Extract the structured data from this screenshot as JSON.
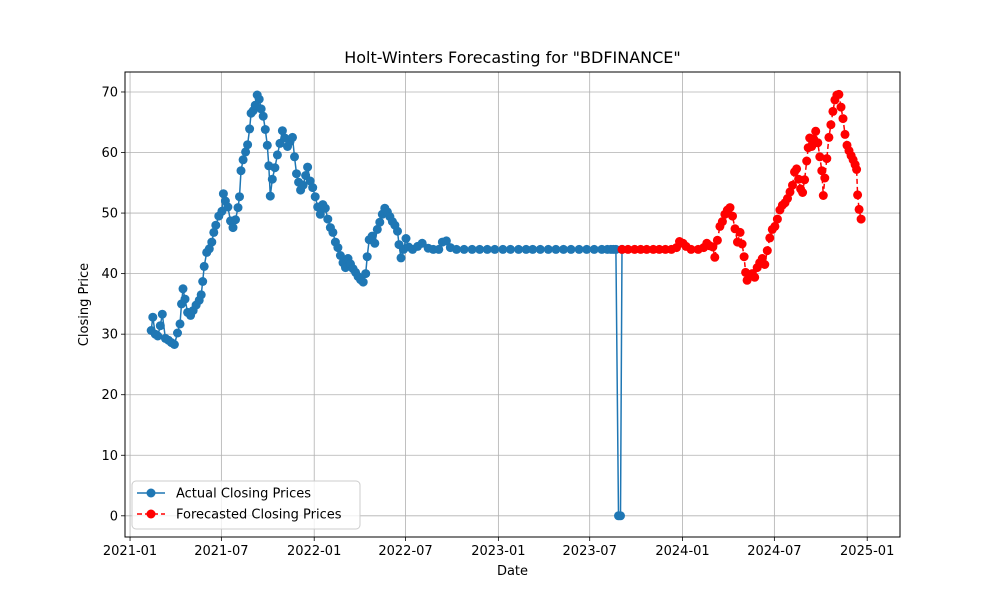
{
  "chart_data": {
    "type": "line",
    "title": "Holt-Winters Forecasting for \"BDFINANCE\"",
    "xlabel": "Date",
    "ylabel": "Closing Price",
    "ylim": [
      -3.5,
      73.3
    ],
    "xlim": [
      "2020-12-22",
      "2025-03-07"
    ],
    "grid": true,
    "legend_position": "lower-left",
    "x_ticks": [
      {
        "date": "2021-01-01",
        "label": "2021-01"
      },
      {
        "date": "2021-07-01",
        "label": "2021-07"
      },
      {
        "date": "2022-01-01",
        "label": "2022-01"
      },
      {
        "date": "2022-07-01",
        "label": "2022-07"
      },
      {
        "date": "2023-01-01",
        "label": "2023-01"
      },
      {
        "date": "2023-07-01",
        "label": "2023-07"
      },
      {
        "date": "2024-01-01",
        "label": "2024-01"
      },
      {
        "date": "2024-07-01",
        "label": "2024-07"
      },
      {
        "date": "2025-01-01",
        "label": "2025-01"
      }
    ],
    "y_ticks": [
      0,
      10,
      20,
      30,
      40,
      50,
      60,
      70
    ],
    "series": [
      {
        "name": "Actual Closing Prices",
        "color": "#1f77b4",
        "linestyle": "solid",
        "marker": "circle",
        "points": [
          [
            "2021-02-12",
            30.6
          ],
          [
            "2021-02-15",
            32.8
          ],
          [
            "2021-02-20",
            30.0
          ],
          [
            "2021-02-25",
            29.7
          ],
          [
            "2021-03-02",
            31.4
          ],
          [
            "2021-03-06",
            33.3
          ],
          [
            "2021-03-12",
            29.3
          ],
          [
            "2021-03-18",
            29.0
          ],
          [
            "2021-03-24",
            28.6
          ],
          [
            "2021-03-30",
            28.3
          ],
          [
            "2021-04-05",
            30.2
          ],
          [
            "2021-04-10",
            31.7
          ],
          [
            "2021-04-13",
            35.0
          ],
          [
            "2021-04-16",
            37.5
          ],
          [
            "2021-04-20",
            35.8
          ],
          [
            "2021-04-25",
            33.6
          ],
          [
            "2021-05-01",
            33.1
          ],
          [
            "2021-05-06",
            33.9
          ],
          [
            "2021-05-12",
            34.8
          ],
          [
            "2021-05-18",
            35.6
          ],
          [
            "2021-05-22",
            36.5
          ],
          [
            "2021-05-25",
            38.7
          ],
          [
            "2021-05-28",
            41.2
          ],
          [
            "2021-06-02",
            43.5
          ],
          [
            "2021-06-07",
            44.1
          ],
          [
            "2021-06-12",
            45.2
          ],
          [
            "2021-06-16",
            46.8
          ],
          [
            "2021-06-20",
            48.0
          ],
          [
            "2021-06-26",
            49.5
          ],
          [
            "2021-07-02",
            50.3
          ],
          [
            "2021-07-05",
            53.2
          ],
          [
            "2021-07-09",
            52.0
          ],
          [
            "2021-07-14",
            51.0
          ],
          [
            "2021-07-19",
            48.7
          ],
          [
            "2021-07-24",
            47.6
          ],
          [
            "2021-07-29",
            48.9
          ],
          [
            "2021-08-03",
            50.9
          ],
          [
            "2021-08-06",
            52.7
          ],
          [
            "2021-08-09",
            57.0
          ],
          [
            "2021-08-13",
            58.8
          ],
          [
            "2021-08-18",
            60.1
          ],
          [
            "2021-08-22",
            61.3
          ],
          [
            "2021-08-26",
            63.9
          ],
          [
            "2021-08-29",
            66.5
          ],
          [
            "2021-09-02",
            66.9
          ],
          [
            "2021-09-06",
            67.8
          ],
          [
            "2021-09-10",
            69.5
          ],
          [
            "2021-09-14",
            68.8
          ],
          [
            "2021-09-18",
            67.2
          ],
          [
            "2021-09-22",
            66.0
          ],
          [
            "2021-09-26",
            63.8
          ],
          [
            "2021-09-30",
            61.2
          ],
          [
            "2021-10-03",
            57.8
          ],
          [
            "2021-10-06",
            52.8
          ],
          [
            "2021-10-10",
            55.6
          ],
          [
            "2021-10-15",
            57.5
          ],
          [
            "2021-10-20",
            59.6
          ],
          [
            "2021-10-25",
            61.5
          ],
          [
            "2021-10-30",
            63.6
          ],
          [
            "2021-11-04",
            62.4
          ],
          [
            "2021-11-09",
            61.0
          ],
          [
            "2021-11-14",
            61.8
          ],
          [
            "2021-11-19",
            62.5
          ],
          [
            "2021-11-23",
            59.3
          ],
          [
            "2021-11-27",
            56.5
          ],
          [
            "2021-12-01",
            55.1
          ],
          [
            "2021-12-05",
            53.8
          ],
          [
            "2021-12-10",
            54.6
          ],
          [
            "2021-12-15",
            56.2
          ],
          [
            "2021-12-19",
            57.6
          ],
          [
            "2021-12-24",
            55.3
          ],
          [
            "2021-12-29",
            54.2
          ],
          [
            "2022-01-03",
            52.7
          ],
          [
            "2022-01-08",
            51.0
          ],
          [
            "2022-01-13",
            49.8
          ],
          [
            "2022-01-18",
            51.4
          ],
          [
            "2022-01-23",
            50.8
          ],
          [
            "2022-01-28",
            49.0
          ],
          [
            "2022-02-02",
            47.6
          ],
          [
            "2022-02-07",
            46.8
          ],
          [
            "2022-02-12",
            45.2
          ],
          [
            "2022-02-17",
            44.3
          ],
          [
            "2022-02-22",
            43.0
          ],
          [
            "2022-02-27",
            41.8
          ],
          [
            "2022-03-04",
            41.0
          ],
          [
            "2022-03-09",
            42.5
          ],
          [
            "2022-03-14",
            41.6
          ],
          [
            "2022-03-19",
            40.8
          ],
          [
            "2022-03-24",
            40.2
          ],
          [
            "2022-03-29",
            39.5
          ],
          [
            "2022-04-03",
            39.0
          ],
          [
            "2022-04-08",
            38.6
          ],
          [
            "2022-04-13",
            40.0
          ],
          [
            "2022-04-16",
            42.8
          ],
          [
            "2022-04-20",
            45.6
          ],
          [
            "2022-04-26",
            46.2
          ],
          [
            "2022-05-01",
            45.0
          ],
          [
            "2022-05-06",
            47.3
          ],
          [
            "2022-05-11",
            48.5
          ],
          [
            "2022-05-16",
            49.8
          ],
          [
            "2022-05-21",
            50.8
          ],
          [
            "2022-05-26",
            50.2
          ],
          [
            "2022-05-31",
            49.4
          ],
          [
            "2022-06-05",
            48.6
          ],
          [
            "2022-06-10",
            48.0
          ],
          [
            "2022-06-15",
            47.0
          ],
          [
            "2022-06-18",
            44.8
          ],
          [
            "2022-06-22",
            42.6
          ],
          [
            "2022-06-27",
            44.0
          ],
          [
            "2022-07-02",
            45.8
          ],
          [
            "2022-07-07",
            44.4
          ],
          [
            "2022-07-15",
            44.0
          ],
          [
            "2022-07-25",
            44.5
          ],
          [
            "2022-08-03",
            45.0
          ],
          [
            "2022-08-15",
            44.2
          ],
          [
            "2022-08-25",
            44.0
          ],
          [
            "2022-09-05",
            44.0
          ],
          [
            "2022-09-12",
            45.2
          ],
          [
            "2022-09-20",
            45.4
          ],
          [
            "2022-09-28",
            44.3
          ],
          [
            "2022-10-10",
            44.0
          ],
          [
            "2022-10-25",
            44.0
          ],
          [
            "2022-11-10",
            44.0
          ],
          [
            "2022-11-25",
            44.0
          ],
          [
            "2022-12-10",
            44.0
          ],
          [
            "2022-12-25",
            44.0
          ],
          [
            "2023-01-10",
            44.0
          ],
          [
            "2023-01-25",
            44.0
          ],
          [
            "2023-02-10",
            44.0
          ],
          [
            "2023-02-25",
            44.0
          ],
          [
            "2023-03-10",
            44.0
          ],
          [
            "2023-03-25",
            44.0
          ],
          [
            "2023-04-10",
            44.0
          ],
          [
            "2023-04-25",
            44.0
          ],
          [
            "2023-05-10",
            44.0
          ],
          [
            "2023-05-25",
            44.0
          ],
          [
            "2023-06-10",
            44.0
          ],
          [
            "2023-06-25",
            44.0
          ],
          [
            "2023-07-10",
            44.0
          ],
          [
            "2023-07-25",
            44.0
          ],
          [
            "2023-08-05",
            44.0
          ],
          [
            "2023-08-12",
            44.0
          ],
          [
            "2023-08-17",
            44.0
          ],
          [
            "2023-08-22",
            44.0
          ],
          [
            "2023-08-27",
            0.0
          ],
          [
            "2023-08-31",
            0.0
          ],
          [
            "2023-09-03",
            44.0
          ]
        ]
      },
      {
        "name": "Forecasted Closing Prices",
        "color": "#ff0000",
        "linestyle": "dashed",
        "marker": "circle",
        "points": [
          [
            "2023-09-03",
            44.0
          ],
          [
            "2023-09-15",
            44.0
          ],
          [
            "2023-09-28",
            44.0
          ],
          [
            "2023-10-10",
            44.0
          ],
          [
            "2023-10-22",
            44.0
          ],
          [
            "2023-11-04",
            44.0
          ],
          [
            "2023-11-16",
            44.0
          ],
          [
            "2023-11-28",
            44.0
          ],
          [
            "2023-12-10",
            44.0
          ],
          [
            "2023-12-20",
            44.3
          ],
          [
            "2023-12-26",
            45.3
          ],
          [
            "2024-01-02",
            45.0
          ],
          [
            "2024-01-08",
            44.5
          ],
          [
            "2024-01-18",
            44.0
          ],
          [
            "2024-02-01",
            44.0
          ],
          [
            "2024-02-12",
            44.3
          ],
          [
            "2024-02-18",
            45.0
          ],
          [
            "2024-02-24",
            44.6
          ],
          [
            "2024-03-01",
            44.4
          ],
          [
            "2024-03-05",
            42.7
          ],
          [
            "2024-03-10",
            45.5
          ],
          [
            "2024-03-15",
            47.8
          ],
          [
            "2024-03-20",
            48.6
          ],
          [
            "2024-03-25",
            49.8
          ],
          [
            "2024-03-30",
            50.5
          ],
          [
            "2024-04-04",
            50.9
          ],
          [
            "2024-04-09",
            49.5
          ],
          [
            "2024-04-14",
            47.4
          ],
          [
            "2024-04-19",
            45.2
          ],
          [
            "2024-04-24",
            46.8
          ],
          [
            "2024-04-28",
            44.9
          ],
          [
            "2024-05-02",
            42.8
          ],
          [
            "2024-05-05",
            40.2
          ],
          [
            "2024-05-08",
            38.9
          ],
          [
            "2024-05-13",
            39.6
          ],
          [
            "2024-05-18",
            40.0
          ],
          [
            "2024-05-23",
            39.4
          ],
          [
            "2024-05-28",
            41.0
          ],
          [
            "2024-06-02",
            41.8
          ],
          [
            "2024-06-07",
            42.5
          ],
          [
            "2024-06-12",
            41.5
          ],
          [
            "2024-06-17",
            43.8
          ],
          [
            "2024-06-22",
            45.9
          ],
          [
            "2024-06-27",
            47.3
          ],
          [
            "2024-07-02",
            47.8
          ],
          [
            "2024-07-07",
            49.0
          ],
          [
            "2024-07-12",
            50.5
          ],
          [
            "2024-07-17",
            51.3
          ],
          [
            "2024-07-22",
            51.7
          ],
          [
            "2024-07-27",
            52.4
          ],
          [
            "2024-08-01",
            53.5
          ],
          [
            "2024-08-06",
            54.6
          ],
          [
            "2024-08-10",
            56.8
          ],
          [
            "2024-08-14",
            57.3
          ],
          [
            "2024-08-18",
            55.6
          ],
          [
            "2024-08-22",
            54.0
          ],
          [
            "2024-08-26",
            53.4
          ],
          [
            "2024-08-30",
            55.5
          ],
          [
            "2024-09-03",
            58.6
          ],
          [
            "2024-09-06",
            60.8
          ],
          [
            "2024-09-09",
            62.4
          ],
          [
            "2024-09-13",
            61.0
          ],
          [
            "2024-09-17",
            62.2
          ],
          [
            "2024-09-21",
            63.5
          ],
          [
            "2024-09-25",
            61.6
          ],
          [
            "2024-09-29",
            59.3
          ],
          [
            "2024-10-03",
            57.0
          ],
          [
            "2024-10-06",
            52.9
          ],
          [
            "2024-10-09",
            55.8
          ],
          [
            "2024-10-13",
            59.0
          ],
          [
            "2024-10-17",
            62.5
          ],
          [
            "2024-10-21",
            64.6
          ],
          [
            "2024-10-25",
            66.8
          ],
          [
            "2024-10-29",
            68.7
          ],
          [
            "2024-11-02",
            69.5
          ],
          [
            "2024-11-06",
            69.6
          ],
          [
            "2024-11-10",
            67.5
          ],
          [
            "2024-11-14",
            65.6
          ],
          [
            "2024-11-18",
            63.0
          ],
          [
            "2024-11-22",
            61.2
          ],
          [
            "2024-11-26",
            60.3
          ],
          [
            "2024-11-30",
            59.5
          ],
          [
            "2024-12-04",
            58.8
          ],
          [
            "2024-12-08",
            58.0
          ],
          [
            "2024-12-11",
            57.2
          ],
          [
            "2024-12-13",
            53.0
          ],
          [
            "2024-12-16",
            50.6
          ],
          [
            "2024-12-20",
            49.0
          ]
        ]
      }
    ]
  }
}
